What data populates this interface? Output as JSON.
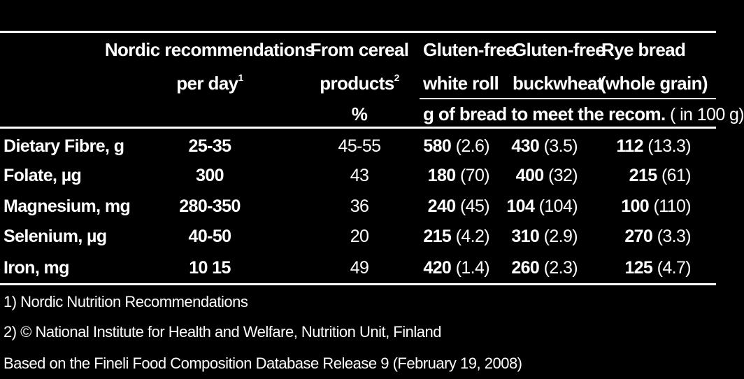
{
  "header": {
    "col1": {
      "line1": "Nordic recommendations",
      "line2": "per day",
      "sup": "1"
    },
    "col2": {
      "line1": "From cereal",
      "line2": "products",
      "sup": "2",
      "line3": "%"
    },
    "col3": {
      "line1": "Gluten-free",
      "line2": "white roll"
    },
    "col4": {
      "line1": "Gluten-free",
      "line2": "buckwheat"
    },
    "col5": {
      "line1": "Rye bread",
      "line2": "(whole grain)"
    },
    "subheader_bold": "g of bread to meet the recom.",
    "subheader_normal": "( in 100 g)"
  },
  "rows": [
    {
      "nutrient": "Dietary Fibre, g",
      "recommendation": "25-35",
      "cereal_pct": "45-55",
      "white_roll": "580",
      "white_roll_per100": "(2.6)",
      "buckwheat": "430",
      "buckwheat_per100": "(3.5)",
      "rye": "112",
      "rye_per100": "(13.3)"
    },
    {
      "nutrient": "Folate, µg",
      "recommendation": "300",
      "cereal_pct": "43",
      "white_roll": "180",
      "white_roll_per100": "(70)",
      "buckwheat": "400",
      "buckwheat_per100": "(32)",
      "rye": "215",
      "rye_per100": "(61)"
    },
    {
      "nutrient": "Magnesium, mg",
      "recommendation": "280-350",
      "cereal_pct": "36",
      "white_roll": "240",
      "white_roll_per100": "(45)",
      "buckwheat": "104",
      "buckwheat_per100": "(104)",
      "rye": "100",
      "rye_per100": "(110)"
    },
    {
      "nutrient": "Selenium, µg",
      "recommendation": "40-50",
      "cereal_pct": "20",
      "white_roll": "215",
      "white_roll_per100": "(4.2)",
      "buckwheat": "310",
      "buckwheat_per100": "(2.9)",
      "rye": "270",
      "rye_per100": "(3.3)"
    },
    {
      "nutrient": "Iron, mg",
      "recommendation": "10 15",
      "cereal_pct": "49",
      "white_roll": "420",
      "white_roll_per100": "(1.4)",
      "buckwheat": "260",
      "buckwheat_per100": "(2.3)",
      "rye": "125",
      "rye_per100": "(4.7)"
    }
  ],
  "footnotes": [
    "1) Nordic Nutrition Recommendations",
    "2) © National Institute for Health and Welfare, Nutrition Unit, Finland",
    "Based on the Fineli Food Composition Database Release 9 (February 19, 2008)"
  ]
}
